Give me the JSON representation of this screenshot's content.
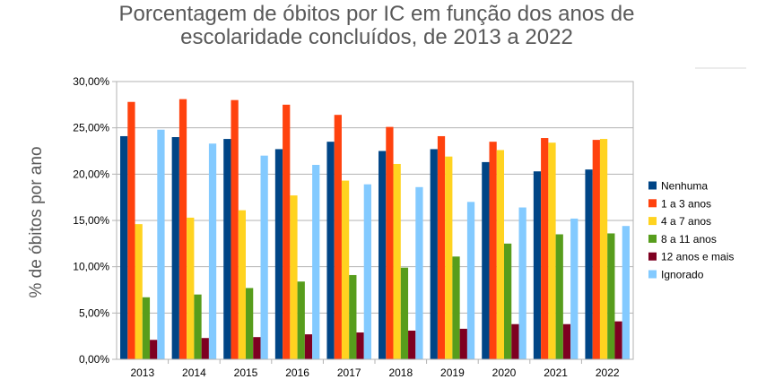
{
  "chart_data": {
    "type": "bar",
    "title_lines": [
      "Porcentagem de óbitos por IC em função dos anos de",
      "escolaridade concluídos, de 2013 a 2022"
    ],
    "xlabel": "",
    "ylabel": "% de óbitos por ano",
    "ylim": [
      0,
      30
    ],
    "yticks": [
      0,
      5,
      10,
      15,
      20,
      25,
      30
    ],
    "ytick_labels": [
      "0,00%",
      "5,00%",
      "10,00%",
      "15,00%",
      "20,00%",
      "25,00%",
      "30,00%"
    ],
    "grid": true,
    "legend_position": "right",
    "categories": [
      "2013",
      "2014",
      "2015",
      "2016",
      "2017",
      "2018",
      "2019",
      "2020",
      "2021",
      "2022"
    ],
    "series": [
      {
        "name": "Nenhuma",
        "color": "#004586",
        "values": [
          24.1,
          24.0,
          23.8,
          22.7,
          23.5,
          22.5,
          22.7,
          21.3,
          20.3,
          20.5
        ]
      },
      {
        "name": "1 a 3 anos",
        "color": "#ff420e",
        "values": [
          27.8,
          28.1,
          28.0,
          27.5,
          26.4,
          25.1,
          24.1,
          23.5,
          23.9,
          23.7
        ]
      },
      {
        "name": "4 a 7 anos",
        "color": "#ffd320",
        "values": [
          14.6,
          15.3,
          16.1,
          17.7,
          19.3,
          21.1,
          21.9,
          22.6,
          23.4,
          23.8
        ]
      },
      {
        "name": "8 a 11 anos",
        "color": "#579d1c",
        "values": [
          6.7,
          7.0,
          7.7,
          8.4,
          9.1,
          9.9,
          11.1,
          12.5,
          13.5,
          13.6
        ]
      },
      {
        "name": "12 anos e mais",
        "color": "#7e0021",
        "values": [
          2.1,
          2.3,
          2.4,
          2.7,
          2.9,
          3.1,
          3.3,
          3.8,
          3.8,
          4.1
        ]
      },
      {
        "name": "Ignorado",
        "color": "#83caff",
        "values": [
          24.8,
          23.3,
          22.0,
          21.0,
          18.9,
          18.6,
          17.0,
          16.4,
          15.2,
          14.4
        ]
      }
    ]
  }
}
